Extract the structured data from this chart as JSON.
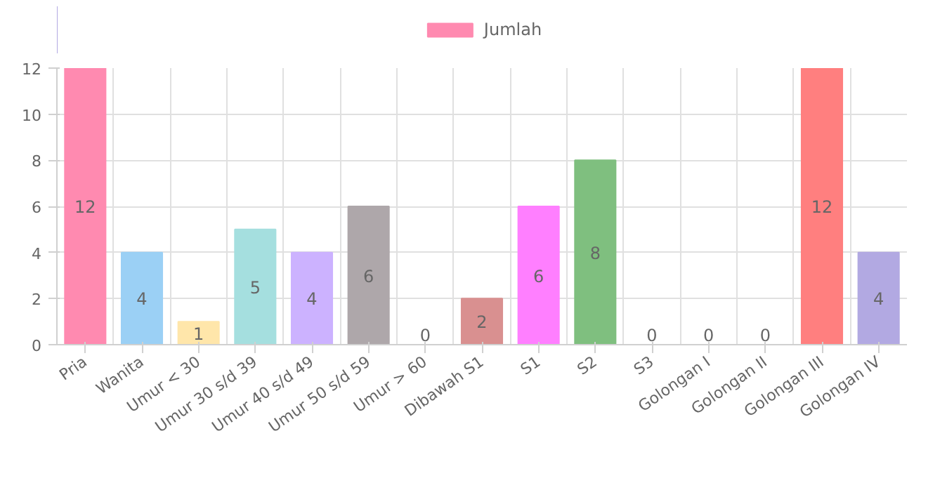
{
  "chart_data": {
    "type": "bar",
    "categories": [
      "Pria",
      "Wanita",
      "Umur < 30",
      "Umur 30 s/d 39",
      "Umur 40 s/d 49",
      "Umur 50 s/d 59",
      "Umur > 60",
      "Dibawah S1",
      "S1",
      "S2",
      "S3",
      "Golongan I",
      "Golongan II",
      "Golongan III",
      "Golongan IV"
    ],
    "series": [
      {
        "name": "Jumlah",
        "values": [
          12,
          4,
          1,
          5,
          4,
          6,
          0,
          2,
          6,
          8,
          0,
          0,
          0,
          12,
          4
        ]
      }
    ],
    "colors": [
      "#ff8ab0",
      "#9bd0f5",
      "#ffe6aa",
      "#a5dfdf",
      "#ccb2ff",
      "#aea7aa",
      "#c9cbcf",
      "#d99090",
      "#ff7fff",
      "#7fbf7f",
      "#c9cbcf",
      "#c9cbcf",
      "#c9cbcf",
      "#ff7f7f",
      "#b2a9e2"
    ],
    "ylim": [
      0,
      12
    ],
    "yticks": [
      0,
      2,
      4,
      6,
      8,
      10,
      12
    ],
    "grid": true,
    "legend": "top",
    "data_labels": true
  }
}
